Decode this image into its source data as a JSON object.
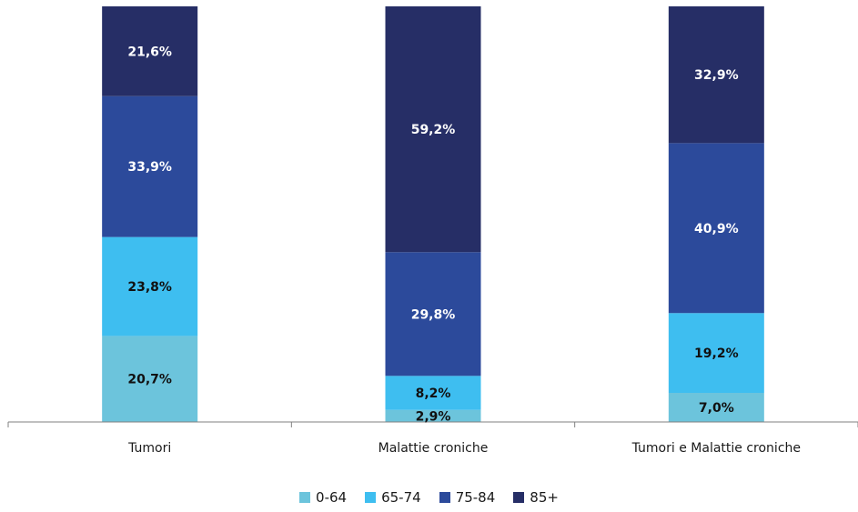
{
  "chart_data": {
    "type": "bar",
    "stacked": true,
    "normalized": true,
    "categories": [
      "Tumori",
      "Malattie croniche",
      "Tumori e Malattie croniche"
    ],
    "series": [
      {
        "name": "0-64",
        "color": "#6cc4dc",
        "label_color": "#111111",
        "values": [
          20.7,
          2.9,
          7.0
        ],
        "labels": [
          "20,7%",
          "2,9%",
          "7,0%"
        ]
      },
      {
        "name": "65-74",
        "color": "#3ebef0",
        "label_color": "#111111",
        "values": [
          23.8,
          8.2,
          19.2
        ],
        "labels": [
          "23,8%",
          "8,2%",
          "19,2%"
        ]
      },
      {
        "name": "75-84",
        "color": "#2c4a9b",
        "label_color": "#ffffff",
        "values": [
          33.9,
          29.8,
          40.9
        ],
        "labels": [
          "33,9%",
          "29,8%",
          "40,9%"
        ]
      },
      {
        "name": "85+",
        "color": "#262e66",
        "label_color": "#ffffff",
        "values": [
          21.6,
          59.2,
          32.9
        ],
        "labels": [
          "21,6%",
          "59,2%",
          "32,9%"
        ]
      }
    ],
    "grid": false,
    "legend_position": "bottom"
  }
}
